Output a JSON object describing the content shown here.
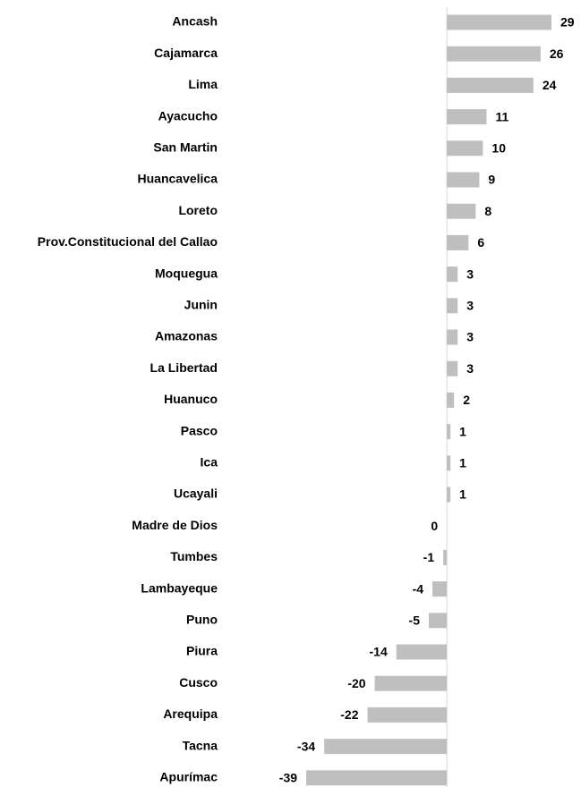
{
  "chart_data": {
    "type": "bar",
    "orientation": "horizontal",
    "categories": [
      "Ancash",
      "Cajamarca",
      "Lima",
      "Ayacucho",
      "San Martin",
      "Huancavelica",
      "Loreto",
      "Prov.Constitucional del Callao",
      "Moquegua",
      "Junin",
      "Amazonas",
      "La Libertad",
      "Huanuco",
      "Pasco",
      "Ica",
      "Ucayali",
      "Madre de Dios",
      "Tumbes",
      "Lambayeque",
      "Puno",
      "Piura",
      "Cusco",
      "Arequipa",
      "Tacna",
      "Apurímac"
    ],
    "values": [
      29,
      26,
      24,
      11,
      10,
      9,
      8,
      6,
      3,
      3,
      3,
      3,
      2,
      1,
      1,
      1,
      0,
      -1,
      -4,
      -5,
      -14,
      -20,
      -22,
      -34,
      -39
    ],
    "color": "#bfbfbf",
    "xlim": [
      -40,
      30
    ]
  }
}
